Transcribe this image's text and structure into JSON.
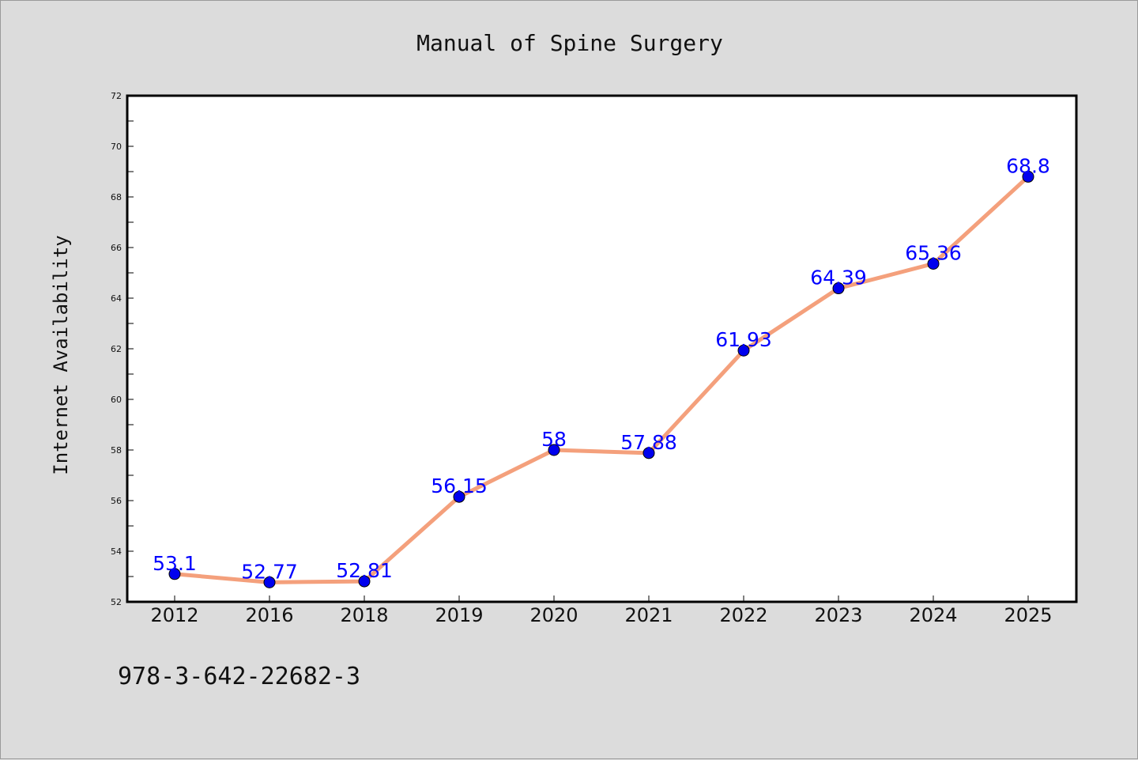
{
  "chart_data": {
    "type": "line",
    "title": "Manual of Spine Surgery",
    "xlabel": "",
    "ylabel": "Internet Availability",
    "categories": [
      "2012",
      "2016",
      "2018",
      "2019",
      "2020",
      "2021",
      "2022",
      "2023",
      "2024",
      "2025"
    ],
    "series": [
      {
        "values": [
          53.1,
          52.77,
          52.81,
          56.15,
          58,
          57.88,
          61.93,
          64.39,
          65.36,
          68.8
        ],
        "labels": [
          "53.1",
          "52.77",
          "52.81",
          "56.15",
          "58",
          "57.88",
          "61.93",
          "64.39",
          "65.36",
          "68.8"
        ]
      }
    ],
    "ylim": [
      52,
      72
    ],
    "yticks": [
      "52",
      "54",
      "56",
      "58",
      "60",
      "62",
      "64",
      "66",
      "68",
      "70",
      "72"
    ],
    "grid": false,
    "line_color": "#f4a07c",
    "marker_color": "#0000ee",
    "label_color": "#0000ff"
  },
  "footer_text": "978-3-642-22682-3"
}
